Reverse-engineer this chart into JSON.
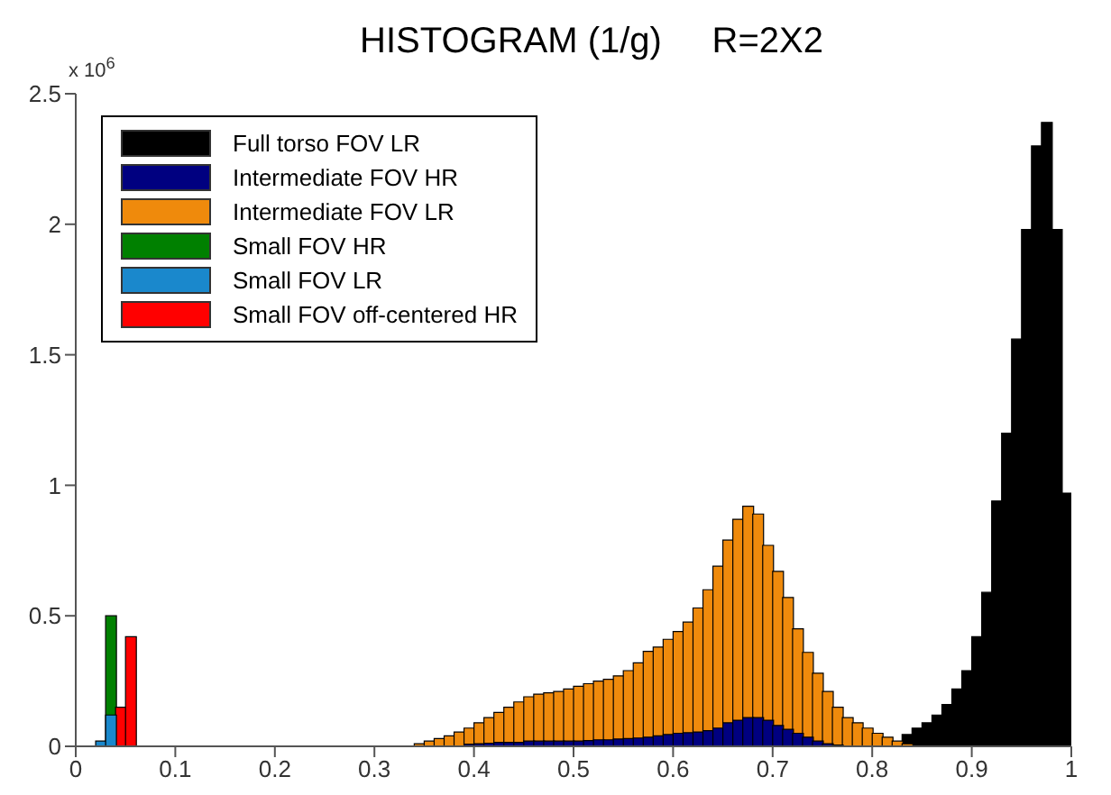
{
  "chart_data": {
    "type": "histogram",
    "title": "HISTOGRAM (1/g)     R=2X2",
    "annotations": [
      "x 10$^{6}$"
    ],
    "bins": [
      0,
      0.01,
      0.02,
      0.03,
      0.04,
      0.05,
      0.06,
      0.07,
      0.08,
      0.09,
      0.1,
      0.11,
      0.12,
      0.13,
      0.14,
      0.15,
      0.16,
      0.17,
      0.18,
      0.19,
      0.2,
      0.21,
      0.22,
      0.23,
      0.24,
      0.25,
      0.26,
      0.27,
      0.28,
      0.29,
      0.3,
      0.31,
      0.32,
      0.33,
      0.34,
      0.35,
      0.36,
      0.37,
      0.38,
      0.39,
      0.4,
      0.41,
      0.42,
      0.43,
      0.44,
      0.45,
      0.46,
      0.47,
      0.48,
      0.49,
      0.5,
      0.51,
      0.52,
      0.53,
      0.54,
      0.55,
      0.56,
      0.57,
      0.58,
      0.59,
      0.6,
      0.61,
      0.62,
      0.63,
      0.64,
      0.65,
      0.66,
      0.67,
      0.68,
      0.69,
      0.7,
      0.71,
      0.72,
      0.73,
      0.74,
      0.75,
      0.76,
      0.77,
      0.78,
      0.79,
      0.8,
      0.81,
      0.82,
      0.83,
      0.84,
      0.85,
      0.86,
      0.87,
      0.88,
      0.89,
      0.9,
      0.91,
      0.92,
      0.93,
      0.94,
      0.95,
      0.96,
      0.97,
      0.98,
      0.99,
      1
    ],
    "series": [
      {
        "name": "Full torso FOV LR",
        "color": "#000000",
        "values": [
          null,
          null,
          null,
          null,
          null,
          null,
          null,
          null,
          null,
          null,
          null,
          null,
          null,
          null,
          null,
          null,
          null,
          null,
          null,
          null,
          null,
          null,
          null,
          null,
          null,
          null,
          null,
          null,
          null,
          null,
          null,
          null,
          null,
          null,
          null,
          null,
          null,
          null,
          null,
          null,
          null,
          null,
          null,
          null,
          null,
          null,
          null,
          null,
          null,
          null,
          null,
          null,
          null,
          null,
          null,
          null,
          null,
          null,
          null,
          null,
          null,
          null,
          null,
          null,
          null,
          null,
          null,
          null,
          null,
          null,
          null,
          null,
          null,
          null,
          null,
          null,
          null,
          null,
          null,
          null,
          null,
          null,
          null,
          0.045,
          0.07,
          0.09,
          0.12,
          0.16,
          0.22,
          0.29,
          0.42,
          0.59,
          0.94,
          1.2,
          1.56,
          1.98,
          2.3,
          2.39,
          1.98,
          0.97
        ]
      },
      {
        "name": "Intermediate FOV HR",
        "color": "#000080",
        "values": [
          null,
          null,
          null,
          null,
          null,
          null,
          null,
          null,
          null,
          null,
          null,
          null,
          null,
          null,
          null,
          null,
          null,
          null,
          null,
          null,
          null,
          null,
          null,
          null,
          null,
          null,
          null,
          null,
          null,
          null,
          null,
          null,
          null,
          null,
          null,
          null,
          null,
          null,
          null,
          0.008,
          0.01,
          0.012,
          0.015,
          0.015,
          0.015,
          0.02,
          0.02,
          0.02,
          0.02,
          0.02,
          0.02,
          0.022,
          0.025,
          0.025,
          0.028,
          0.03,
          0.032,
          0.035,
          0.04,
          0.045,
          0.05,
          0.052,
          0.055,
          0.06,
          0.07,
          0.09,
          0.1,
          0.11,
          0.11,
          0.1,
          0.08,
          0.065,
          0.05,
          0.035,
          0.02,
          0.01,
          0.005,
          null,
          null,
          null,
          null,
          null,
          null,
          null,
          null,
          null,
          null,
          null,
          null,
          null,
          null,
          null,
          null,
          null,
          null,
          null,
          null,
          null,
          null,
          null
        ]
      },
      {
        "name": "Intermediate FOV LR",
        "color": "#ef8a0c",
        "values": [
          null,
          null,
          null,
          null,
          null,
          null,
          null,
          null,
          null,
          null,
          null,
          null,
          null,
          null,
          null,
          null,
          null,
          null,
          null,
          null,
          null,
          null,
          null,
          null,
          null,
          null,
          null,
          null,
          null,
          null,
          null,
          null,
          null,
          null,
          0.01,
          0.02,
          0.03,
          0.04,
          0.055,
          0.07,
          0.09,
          0.11,
          0.13,
          0.15,
          0.17,
          0.19,
          0.2,
          0.205,
          0.21,
          0.22,
          0.23,
          0.24,
          0.25,
          0.257,
          0.27,
          0.29,
          0.32,
          0.364,
          0.38,
          0.41,
          0.44,
          0.476,
          0.53,
          0.6,
          0.69,
          0.79,
          0.87,
          0.92,
          0.89,
          0.77,
          0.67,
          0.57,
          0.45,
          0.36,
          0.28,
          0.21,
          0.15,
          0.11,
          0.09,
          0.07,
          0.05,
          0.035,
          0.02,
          0.01,
          null,
          null,
          null,
          null,
          null,
          null,
          null,
          null,
          null,
          null,
          null,
          null,
          null,
          null,
          null,
          null
        ]
      },
      {
        "name": "Small FOV HR",
        "color": "#008000",
        "values": [
          null,
          null,
          null,
          0.5,
          null,
          null,
          null,
          null,
          null,
          null,
          null,
          null,
          null,
          null,
          null,
          null,
          null,
          null,
          null,
          null,
          null,
          null,
          null,
          null,
          null,
          null,
          null,
          null,
          null,
          null,
          null,
          null,
          null,
          null,
          null,
          null,
          null,
          null,
          null,
          null,
          null,
          null,
          null,
          null,
          null,
          null,
          null,
          null,
          null,
          null,
          null,
          null,
          null,
          null,
          null,
          null,
          null,
          null,
          null,
          null,
          null,
          null,
          null,
          null,
          null,
          null,
          null,
          null,
          null,
          null,
          null,
          null,
          null,
          null,
          null,
          null,
          null,
          null,
          null,
          null,
          null,
          null,
          null,
          null,
          null,
          null,
          null,
          null,
          null,
          null,
          null,
          null,
          null,
          null,
          null,
          null,
          null,
          null,
          null,
          null
        ]
      },
      {
        "name": "Small FOV LR",
        "color": "#1a88cc",
        "values": [
          null,
          null,
          0.02,
          0.12,
          null,
          null,
          null,
          null,
          null,
          null,
          null,
          null,
          null,
          null,
          null,
          null,
          null,
          null,
          null,
          null,
          null,
          null,
          null,
          null,
          null,
          null,
          null,
          null,
          null,
          null,
          null,
          null,
          null,
          null,
          null,
          null,
          null,
          null,
          null,
          null,
          null,
          null,
          null,
          null,
          null,
          null,
          null,
          null,
          null,
          null,
          null,
          null,
          null,
          null,
          null,
          null,
          null,
          null,
          null,
          null,
          null,
          null,
          null,
          null,
          null,
          null,
          null,
          null,
          null,
          null,
          null,
          null,
          null,
          null,
          null,
          null,
          null,
          null,
          null,
          null,
          null,
          null,
          null,
          null,
          null,
          null,
          null,
          null,
          null,
          null,
          null,
          null,
          null,
          null,
          null,
          null,
          null,
          null,
          null,
          null
        ]
      },
      {
        "name": "Small FOV off-centered HR",
        "color": "#ff0000",
        "values": [
          null,
          null,
          null,
          null,
          0.15,
          0.42,
          null,
          null,
          null,
          null,
          null,
          null,
          null,
          null,
          null,
          null,
          null,
          null,
          null,
          null,
          null,
          null,
          null,
          null,
          null,
          null,
          null,
          null,
          null,
          null,
          null,
          null,
          null,
          null,
          null,
          null,
          null,
          null,
          null,
          null,
          null,
          null,
          null,
          null,
          null,
          null,
          null,
          null,
          null,
          null,
          null,
          null,
          null,
          null,
          null,
          null,
          null,
          null,
          null,
          null,
          null,
          null,
          null,
          null,
          null,
          null,
          null,
          null,
          null,
          null,
          null,
          null,
          null,
          null,
          null,
          null,
          null,
          null,
          null,
          null,
          null,
          null,
          null,
          null,
          null,
          null,
          null,
          null,
          null,
          null,
          null,
          null,
          null,
          null,
          null,
          null,
          null,
          null,
          null,
          null
        ]
      }
    ],
    "xlim": [
      0,
      1
    ],
    "xticks": [
      0,
      0.1,
      0.2,
      0.3,
      0.4,
      0.5,
      0.6,
      0.7,
      0.8,
      0.9,
      1
    ],
    "ylim": [
      0,
      2.5
    ],
    "yticks": [
      0,
      0.5,
      1,
      1.5,
      2,
      2.5
    ],
    "grid": false,
    "legend": "top left"
  }
}
